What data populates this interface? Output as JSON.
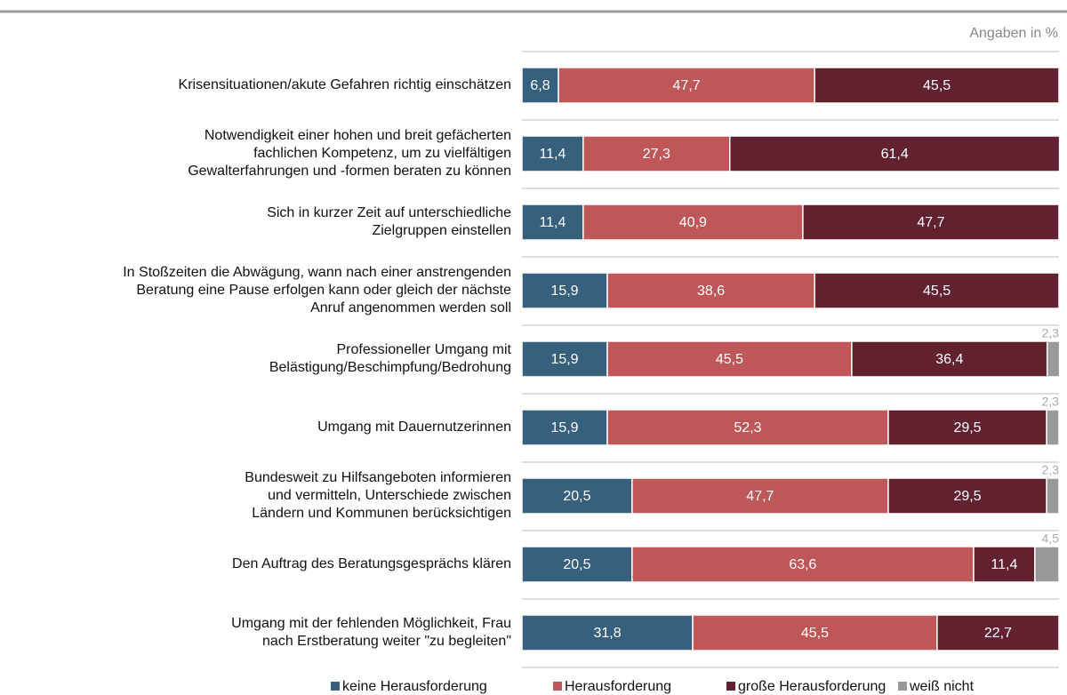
{
  "chart_data": {
    "type": "stacked-bar-horizontal",
    "annotation": "Angaben in %",
    "categories": [
      "Krisensituationen/akute Gefahren richtig einschätzen",
      "Notwendigkeit einer hohen und breit gefächerten\nfachlichen Kompetenz, um zu vielfältigen\nGewalterfahrungen und -formen beraten zu können",
      "Sich in kurzer Zeit auf unterschiedliche\nZielgruppen einstellen",
      "In Stoßzeiten die Abwägung, wann nach einer anstrengenden\nBeratung eine Pause erfolgen kann oder gleich der nächste\nAnruf angenommen werden soll",
      "Professioneller Umgang mit\nBelästigung/Beschimpfung/Bedrohung",
      "Umgang mit Dauernutzerinnen",
      "Bundesweit zu Hilfsangeboten informieren\nund vermitteln, Unterschiede zwischen\nLändern und Kommunen berücksichtigen",
      "Den Auftrag des Beratungsgesprächs klären",
      "Umgang mit der fehlenden Möglichkeit, Frau\nnach Erstberatung weiter \"zu begleiten\""
    ],
    "xlim": [
      0,
      100
    ],
    "series": [
      {
        "name": "keine Herausforderung",
        "color": "#37607d",
        "values": [
          6.8,
          11.4,
          11.4,
          15.9,
          15.9,
          15.9,
          20.5,
          20.5,
          31.8
        ],
        "value_labels": [
          "6,8",
          "11,4",
          "11,4",
          "15,9",
          "15,9",
          "15,9",
          "20,5",
          "20,5",
          "31,8"
        ]
      },
      {
        "name": "Herausforderung",
        "color": "#bf5658",
        "values": [
          47.7,
          27.3,
          40.9,
          38.6,
          45.5,
          52.3,
          47.7,
          63.6,
          45.5
        ],
        "value_labels": [
          "47,7",
          "27,3",
          "40,9",
          "38,6",
          "45,5",
          "52,3",
          "47,7",
          "63,6",
          "45,5"
        ]
      },
      {
        "name": "große Herausforderung",
        "color": "#61212f",
        "values": [
          45.5,
          61.4,
          47.7,
          45.5,
          36.4,
          29.5,
          29.5,
          11.4,
          22.7
        ],
        "value_labels": [
          "45,5",
          "61,4",
          "47,7",
          "45,5",
          "36,4",
          "29,5",
          "29,5",
          "11,4",
          "22,7"
        ]
      },
      {
        "name": "weiß nicht",
        "color": "#999999",
        "values": [
          null,
          null,
          null,
          null,
          2.3,
          2.3,
          2.3,
          4.5,
          null
        ],
        "value_labels": [
          null,
          null,
          null,
          null,
          "2,3",
          "2,3",
          "2,3",
          "4,5",
          null
        ]
      }
    ]
  }
}
